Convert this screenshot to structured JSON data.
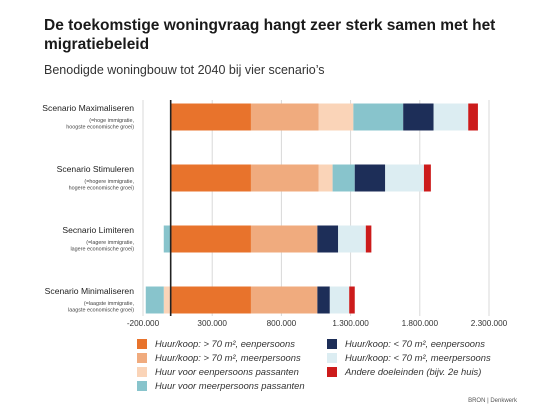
{
  "title": "De toekomstige woningvraag hangt zeer sterk samen met het migratiebeleid",
  "subtitle": "Benodigde woningbouw tot 2040 bij vier scenario’s",
  "source": "BRON | Denkwerk",
  "chart_data": {
    "type": "bar",
    "orientation": "horizontal",
    "stacked": true,
    "title": "De toekomstige woningvraag hangt zeer sterk samen met het migratiebeleid",
    "subtitle": "Benodigde woningbouw tot 2040 bij vier scenario’s",
    "xlim": [
      -200000,
      2300000
    ],
    "xticks": [
      -200000,
      300000,
      800000,
      1300000,
      1800000,
      2300000
    ],
    "xtick_labels": [
      "-200.000",
      "300.000",
      "800.000",
      "1.300.000",
      "1.800.000",
      "2.300.000"
    ],
    "grid": "vertical lines at ticks",
    "legend_position": "bottom",
    "categories": [
      {
        "name": "Scenario Maximaliseren",
        "note": "(=hoge immigratie, hoogste economische groei)"
      },
      {
        "name": "Scenario Stimuleren",
        "note": "(=hogere immigratie, hogere economische groei)"
      },
      {
        "name": "Secnario Limiteren",
        "note": "(=lagere immigratie, lagere economische groei)"
      },
      {
        "name": "Scenario Minimaliseren",
        "note": "(=laagste immigratie, laagste economische groei)"
      }
    ],
    "series": [
      {
        "name": "Huur/koop: > 70 m², eenpersoons",
        "color": "#e8732c",
        "values": [
          580000,
          580000,
          580000,
          580000
        ]
      },
      {
        "name": "Huur/koop: > 70 m², meerpersoons",
        "color": "#f0ab7e",
        "values": [
          490000,
          490000,
          480000,
          480000
        ]
      },
      {
        "name": "Huur voor eenpersoons passanten",
        "color": "#fad4b8",
        "values": [
          250000,
          100000,
          0,
          -50000
        ]
      },
      {
        "name": "Huur voor meerpersoons passanten",
        "color": "#88c4cc",
        "values": [
          360000,
          160000,
          -50000,
          -130000
        ]
      },
      {
        "name": "Huur/koop: < 70 m², eenpersoons",
        "color": "#1d2e58",
        "values": [
          220000,
          220000,
          150000,
          90000
        ]
      },
      {
        "name": "Huur/koop: < 70 m², meerpersoons",
        "color": "#dcedf2",
        "values": [
          250000,
          280000,
          200000,
          140000
        ]
      },
      {
        "name": "Andere doeleinden (bijv. 2e huis)",
        "color": "#cc1b1b",
        "values": [
          70000,
          50000,
          40000,
          40000
        ]
      }
    ]
  },
  "legend": [
    {
      "label": "Huur/koop: > 70 m², eenpersoons",
      "color": "#e8732c"
    },
    {
      "label": "Huur/koop: < 70 m², eenpersoons",
      "color": "#1d2e58"
    },
    {
      "label": "Huur/koop: > 70 m², meerpersoons",
      "color": "#f0ab7e"
    },
    {
      "label": "Huur/koop: < 70 m², meerpersoons",
      "color": "#dcedf2"
    },
    {
      "label": "Huur voor eenpersoons passanten",
      "color": "#fad4b8"
    },
    {
      "label": "Andere doeleinden (bijv. 2e huis)",
      "color": "#cc1b1b"
    },
    {
      "label": "Huur voor meerpersoons passanten",
      "color": "#88c4cc"
    }
  ]
}
